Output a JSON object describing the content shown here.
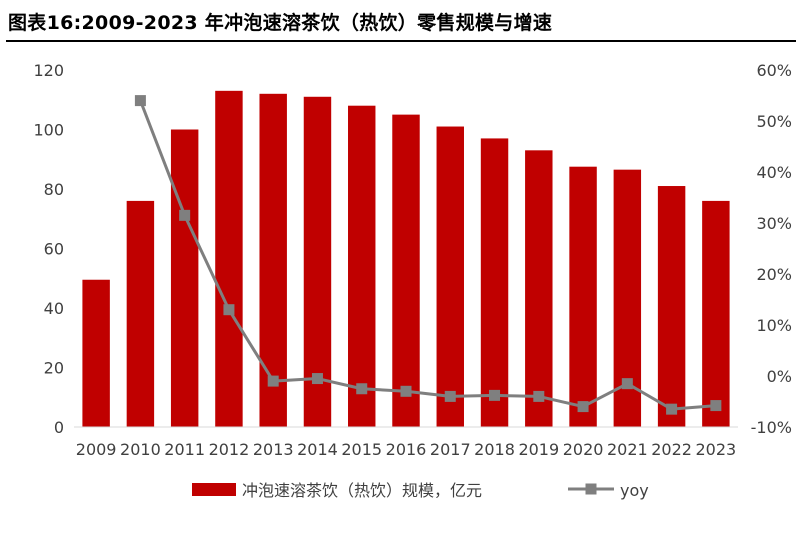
{
  "header": {
    "title": "图表16:2009-2023 年冲泡速溶茶饮（热饮）零售规模与增速"
  },
  "colors": {
    "bar": "#c00000",
    "line": "#7f7f7f",
    "axis_text": "#404040"
  },
  "chart_data": {
    "type": "bar",
    "categories": [
      "2009",
      "2010",
      "2011",
      "2012",
      "2013",
      "2014",
      "2015",
      "2016",
      "2017",
      "2018",
      "2019",
      "2020",
      "2021",
      "2022",
      "2023"
    ],
    "series": [
      {
        "name": "冲泡速溶茶饮（热饮）规模，亿元",
        "type": "bar",
        "axis": "left",
        "values": [
          49.5,
          76,
          100,
          113,
          112,
          111,
          108,
          105,
          101,
          97,
          93,
          87.5,
          86.5,
          81,
          76
        ]
      },
      {
        "name": "yoy",
        "type": "line",
        "axis": "right",
        "values": [
          null,
          54,
          31.5,
          13,
          -1,
          -0.5,
          -2.5,
          -3,
          -4,
          -3.8,
          -4,
          -6,
          -1.5,
          -6.5,
          -5.8
        ]
      }
    ],
    "left_axis": {
      "ylim": [
        0,
        120
      ],
      "ticks": [
        0,
        20,
        40,
        60,
        80,
        100,
        120
      ]
    },
    "right_axis": {
      "ylim": [
        -10,
        60
      ],
      "ticks": [
        -10,
        0,
        10,
        20,
        30,
        40,
        50,
        60
      ],
      "tick_labels": [
        "-10%",
        "0%",
        "10%",
        "20%",
        "30%",
        "40%",
        "50%",
        "60%"
      ]
    },
    "grid": false,
    "legend_position": "bottom"
  }
}
